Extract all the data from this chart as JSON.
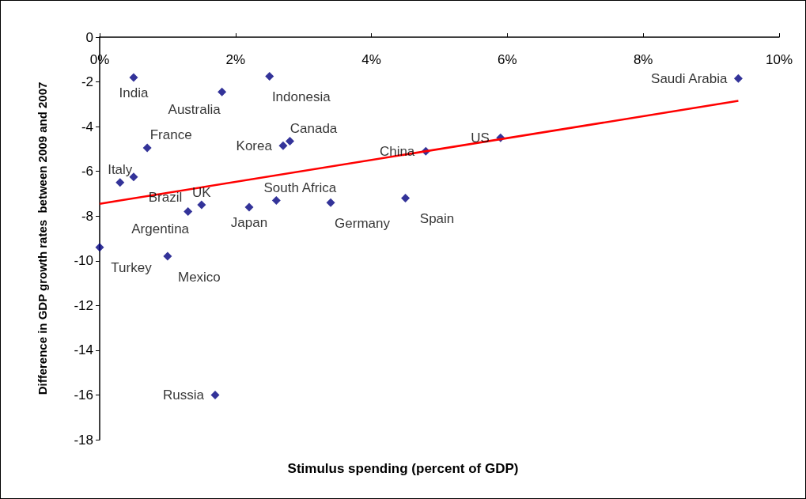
{
  "chart_data": {
    "type": "scatter",
    "xlabel": "Stimulus spending (percent of GDP)",
    "ylabel": "Difference in GDP growth rates  between 2009 and 2007",
    "xlim": [
      0,
      10
    ],
    "xticks": [
      {
        "value": 0,
        "label": "0%"
      },
      {
        "value": 2,
        "label": "2%"
      },
      {
        "value": 4,
        "label": "4%"
      },
      {
        "value": 6,
        "label": "6%"
      },
      {
        "value": 8,
        "label": "8%"
      },
      {
        "value": 10,
        "label": "10%"
      }
    ],
    "ylim": [
      -18,
      0
    ],
    "yticks": [
      0,
      -2,
      -4,
      -6,
      -8,
      -10,
      -12,
      -14,
      -16,
      -18
    ],
    "grid": false,
    "marker": "diamond",
    "series": [
      {
        "color": "#000080",
        "x": [
          0.5,
          1.8,
          2.5,
          0.7,
          2.7,
          2.8,
          4.8,
          5.9,
          9.4,
          0.3,
          0.5,
          1.5,
          1.3,
          2.2,
          2.6,
          3.4,
          4.5,
          0.0,
          1.0,
          1.7
        ],
        "values": [
          -1.8,
          -2.45,
          -1.75,
          -4.95,
          -4.85,
          -4.65,
          -5.1,
          -4.5,
          -1.85,
          -6.5,
          -6.25,
          -7.5,
          -7.8,
          -7.6,
          -7.3,
          -7.4,
          -7.2,
          -9.4,
          -9.8,
          -16.0
        ]
      },
      {
        "type": "line",
        "color": "#ff0000",
        "marker": "none",
        "line_style": "solid",
        "x": [
          0,
          9.4
        ],
        "values": [
          -7.45,
          -2.85
        ]
      }
    ],
    "annotations": [
      {
        "text": "India",
        "x": 0.5,
        "y": -1.8
      },
      {
        "text": "Australia",
        "x": 1.8,
        "y": -2.45
      },
      {
        "text": "Indonesia",
        "x": 2.5,
        "y": -1.75
      },
      {
        "text": "France",
        "x": 0.7,
        "y": -4.95
      },
      {
        "text": "Korea",
        "x": 2.7,
        "y": -4.85
      },
      {
        "text": "Canada",
        "x": 2.8,
        "y": -4.65
      },
      {
        "text": "China",
        "x": 4.8,
        "y": -5.1
      },
      {
        "text": "US",
        "x": 5.9,
        "y": -4.5
      },
      {
        "text": "Saudi Arabia",
        "x": 9.4,
        "y": -1.85
      },
      {
        "text": "Italy",
        "x": 0.3,
        "y": -6.5
      },
      {
        "text": "Brazil",
        "x": 0.5,
        "y": -6.25
      },
      {
        "text": "UK",
        "x": 1.5,
        "y": -7.5
      },
      {
        "text": "Argentina",
        "x": 1.3,
        "y": -7.8
      },
      {
        "text": "Japan",
        "x": 2.2,
        "y": -7.6
      },
      {
        "text": "South Africa",
        "x": 2.6,
        "y": -7.3
      },
      {
        "text": "Germany",
        "x": 3.4,
        "y": -7.4
      },
      {
        "text": "Spain",
        "x": 4.5,
        "y": -7.2
      },
      {
        "text": "Turkey",
        "x": 0.0,
        "y": -9.4
      },
      {
        "text": "Mexico",
        "x": 1.0,
        "y": -9.8
      },
      {
        "text": "Russia",
        "x": 1.7,
        "y": -16.0
      }
    ]
  }
}
